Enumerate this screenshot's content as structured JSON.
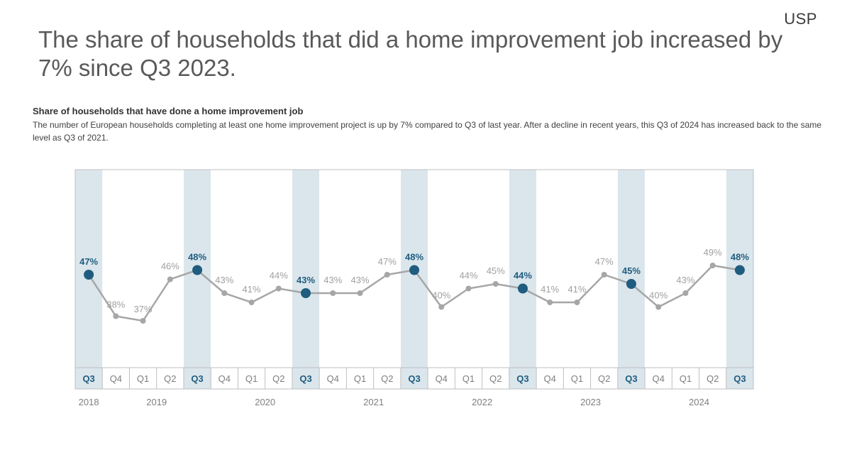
{
  "brand": "USP",
  "title": "The share of households that did a home improvement job increased by 7% since Q3 2023.",
  "subtitle": "Share of households that have done a home improvement job",
  "description": "The number of European households completing at least one home improvement project is up by 7% compared to Q3 of last year. After a decline in recent years, this Q3 of 2024 has increased back to the same level as Q3 of 2021.",
  "colors": {
    "line": "#a6a6a6",
    "highlight": "#1f5c7f",
    "band": "#dae6ec",
    "frame": "#bfbfbf",
    "label": "#a0a0a0"
  },
  "chart_data": {
    "type": "line",
    "title": "Share of households that have done a home improvement job",
    "xlabel": "",
    "ylabel": "",
    "unit": "%",
    "categories": [
      "Q3",
      "Q4",
      "Q1",
      "Q2",
      "Q3",
      "Q4",
      "Q1",
      "Q2",
      "Q3",
      "Q4",
      "Q1",
      "Q2",
      "Q3",
      "Q4",
      "Q1",
      "Q2",
      "Q3",
      "Q4",
      "Q1",
      "Q2",
      "Q3",
      "Q4",
      "Q1",
      "Q2",
      "Q3"
    ],
    "years": [
      {
        "label": "2018",
        "start": 0,
        "end": 0
      },
      {
        "label": "2019",
        "start": 1,
        "end": 4
      },
      {
        "label": "2020",
        "start": 5,
        "end": 8
      },
      {
        "label": "2021",
        "start": 9,
        "end": 12
      },
      {
        "label": "2022",
        "start": 13,
        "end": 16
      },
      {
        "label": "2023",
        "start": 17,
        "end": 20
      },
      {
        "label": "2024",
        "start": 21,
        "end": 24
      }
    ],
    "series": [
      {
        "values": [
          47,
          38,
          37,
          46,
          48,
          43,
          41,
          44,
          43,
          43,
          43,
          47,
          48,
          40,
          44,
          45,
          44,
          41,
          41,
          47,
          45,
          40,
          43,
          49,
          48
        ],
        "labels": [
          "47%",
          "38%",
          "37%",
          "46%",
          "48%",
          "43%",
          "41%",
          "44%",
          "43%",
          "43%",
          "43%",
          "47%",
          "48%",
          "40%",
          "44%",
          "45%",
          "44%",
          "41%",
          "41%",
          "47%",
          "45%",
          "40%",
          "43%",
          "49%",
          "48%"
        ]
      }
    ],
    "highlight_indices": [
      0,
      4,
      8,
      12,
      16,
      20,
      24
    ],
    "grid": false,
    "legend": "none"
  }
}
